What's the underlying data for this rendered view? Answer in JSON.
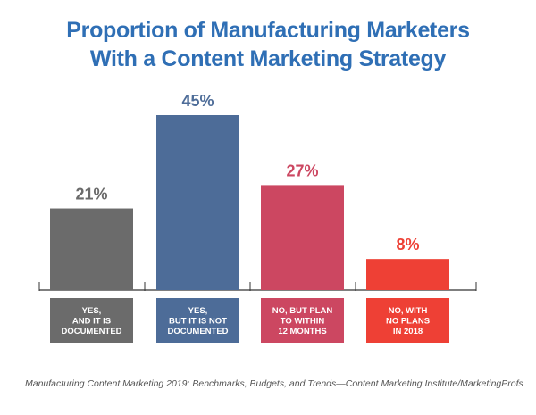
{
  "title_lines": [
    "Proportion of Manufacturing Marketers",
    "With a Content Marketing Strategy"
  ],
  "source": "Manufacturing Content Marketing 2019: Benchmarks, Budgets, and Trends—Content Marketing Institute/MarketingProfs",
  "colors": {
    "title": "#2f6fb5",
    "axis": "#333333"
  },
  "chart_data": {
    "type": "bar",
    "title": "Proportion of Manufacturing Marketers With a Content Marketing Strategy",
    "ylim": [
      0,
      50
    ],
    "grid": false,
    "categories": [
      [
        "YES,",
        "AND IT IS",
        "DOCUMENTED"
      ],
      [
        "YES,",
        "BUT IT IS NOT",
        "DOCUMENTED"
      ],
      [
        "NO, BUT PLAN",
        "TO WITHIN",
        "12 MONTHS"
      ],
      [
        "NO, WITH",
        "NO PLANS",
        "IN 2018"
      ]
    ],
    "values": [
      21,
      45,
      27,
      8
    ],
    "value_labels": [
      "21%",
      "45%",
      "27%",
      "8%"
    ],
    "colors": [
      "#6b6b6b",
      "#4d6c98",
      "#cc4761",
      "#ee4035"
    ]
  }
}
